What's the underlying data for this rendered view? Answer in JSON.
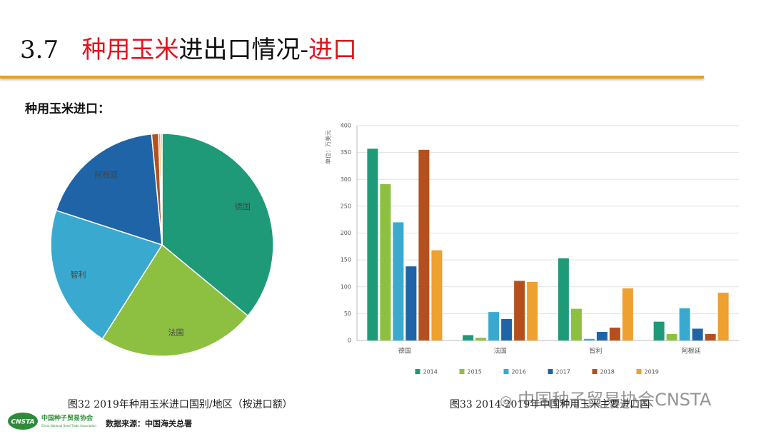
{
  "header": {
    "number": "3.7",
    "title_red": "种用玉米",
    "title_black": "进出口情况-",
    "title_red2": "进口"
  },
  "subheading": "种用玉米进口：",
  "charts": [
    {
      "chart_data": {
        "type": "pie",
        "categories": [
          "德国",
          "法国",
          "智利",
          "阿根廷",
          null,
          null,
          null
        ],
        "values": [
          36,
          23,
          21,
          18.5,
          1,
          0.3,
          0.2
        ],
        "colors": [
          "#1f9a78",
          "#8dc040",
          "#3aa9d0",
          "#1f64a6",
          "#b5501e",
          "#eea030",
          "#1f64a6"
        ]
      }
    },
    {
      "chart_data": {
        "type": "bar",
        "y_label": "单位：万美元",
        "categories": [
          "德国",
          "法国",
          "智利",
          "阿根廷"
        ],
        "series": [
          {
            "name": "2014",
            "color": "#1f9a78",
            "values": [
              357,
              10,
              153,
              35
            ]
          },
          {
            "name": "2015",
            "color": "#8dc040",
            "values": [
              291,
              5,
              59,
              12
            ]
          },
          {
            "name": "2016",
            "color": "#3aa9d0",
            "values": [
              220,
              53,
              3,
              60
            ]
          },
          {
            "name": "2017",
            "color": "#1f64a6",
            "values": [
              138,
              40,
              16,
              22
            ]
          },
          {
            "name": "2018",
            "color": "#b5501e",
            "values": [
              355,
              111,
              24,
              12
            ]
          },
          {
            "name": "2019",
            "color": "#eea030",
            "values": [
              168,
              109,
              97,
              89
            ]
          }
        ],
        "ylim": [
          0,
          400
        ],
        "yticks": [
          0,
          50,
          100,
          150,
          200,
          250,
          300,
          350,
          400
        ],
        "grid": true,
        "legend": "bottom"
      }
    }
  ],
  "captions": [
    "图32  2019年种用玉米进口国别/地区（按进口额）",
    "图33  2014-2019年中国种用玉米主要进口国"
  ],
  "source": "数据来源：中国海关总署",
  "logo": {
    "mark": "CNSTA",
    "name": "中国种子贸易协会",
    "name_en": "China National Seed Trade Association"
  },
  "watermark": "中国种子贸易协会CNSTA"
}
